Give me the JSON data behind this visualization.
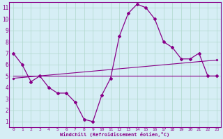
{
  "xlabel": "Windchill (Refroidissement éolien,°C)",
  "background_color": "#d6eef5",
  "grid_color": "#b0d8cc",
  "line_color": "#880088",
  "xlim": [
    -0.5,
    23.5
  ],
  "ylim": [
    0.5,
    11.5
  ],
  "xticks": [
    0,
    1,
    2,
    3,
    4,
    5,
    6,
    7,
    8,
    9,
    10,
    11,
    12,
    13,
    14,
    15,
    16,
    17,
    18,
    19,
    20,
    21,
    22,
    23
  ],
  "yticks": [
    1,
    2,
    3,
    4,
    5,
    6,
    7,
    8,
    9,
    10,
    11
  ],
  "hours": [
    0,
    1,
    2,
    3,
    4,
    5,
    6,
    7,
    8,
    9,
    10,
    11,
    12,
    13,
    14,
    15,
    16,
    17,
    18,
    19,
    20,
    21,
    22,
    23
  ],
  "temp_line": [
    7.0,
    6.0,
    4.5,
    5.0,
    4.0,
    3.5,
    3.5,
    2.7,
    1.2,
    1.0,
    3.3,
    4.8,
    8.5,
    10.5,
    11.3,
    11.0,
    10.0,
    8.0,
    7.5,
    6.5,
    6.5,
    7.0,
    5.0,
    5.0
  ],
  "trend_line_x": [
    0,
    23
  ],
  "trend_line_y": [
    4.8,
    6.4
  ],
  "flat_line_x": [
    0,
    23
  ],
  "flat_line_y": [
    5.0,
    5.0
  ]
}
